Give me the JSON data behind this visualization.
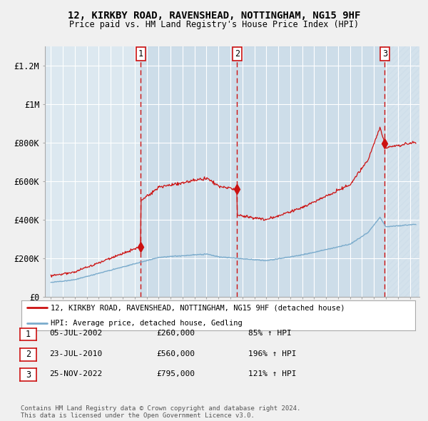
{
  "title1": "12, KIRKBY ROAD, RAVENSHEAD, NOTTINGHAM, NG15 9HF",
  "title2": "Price paid vs. HM Land Registry's House Price Index (HPI)",
  "xlim": [
    1994.5,
    2025.8
  ],
  "ylim": [
    0,
    1300000
  ],
  "yticks": [
    0,
    200000,
    400000,
    600000,
    800000,
    1000000,
    1200000
  ],
  "ytick_labels": [
    "£0",
    "£200K",
    "£400K",
    "£600K",
    "£800K",
    "£1M",
    "£1.2M"
  ],
  "xticks": [
    1995,
    1996,
    1997,
    1998,
    1999,
    2000,
    2001,
    2002,
    2003,
    2004,
    2005,
    2006,
    2007,
    2008,
    2009,
    2010,
    2011,
    2012,
    2013,
    2014,
    2015,
    2016,
    2017,
    2018,
    2019,
    2020,
    2021,
    2022,
    2023,
    2024,
    2025
  ],
  "fig_bg": "#f0f0f0",
  "plot_bg": "#dce8f0",
  "grid_color": "#ffffff",
  "red_color": "#cc1111",
  "blue_color": "#7aabcc",
  "sale1_t": 2002.51,
  "sale1_p": 260000,
  "sale2_t": 2010.55,
  "sale2_p": 560000,
  "sale3_t": 2022.9,
  "sale3_p": 795000,
  "vline_color": "#cc1111",
  "sale_labels": [
    "1",
    "2",
    "3"
  ],
  "legend_entries": [
    {
      "color": "#cc1111",
      "label": "12, KIRKBY ROAD, RAVENSHEAD, NOTTINGHAM, NG15 9HF (detached house)"
    },
    {
      "color": "#7aabcc",
      "label": "HPI: Average price, detached house, Gedling"
    }
  ],
  "table_rows": [
    {
      "num": "1",
      "date": "05-JUL-2002",
      "price": "£260,000",
      "hpi": "85% ↑ HPI"
    },
    {
      "num": "2",
      "date": "23-JUL-2010",
      "price": "£560,000",
      "hpi": "196% ↑ HPI"
    },
    {
      "num": "3",
      "date": "25-NOV-2022",
      "price": "£795,000",
      "hpi": "121% ↑ HPI"
    }
  ],
  "footnote": "Contains HM Land Registry data © Crown copyright and database right 2024.\nThis data is licensed under the Open Government Licence v3.0."
}
